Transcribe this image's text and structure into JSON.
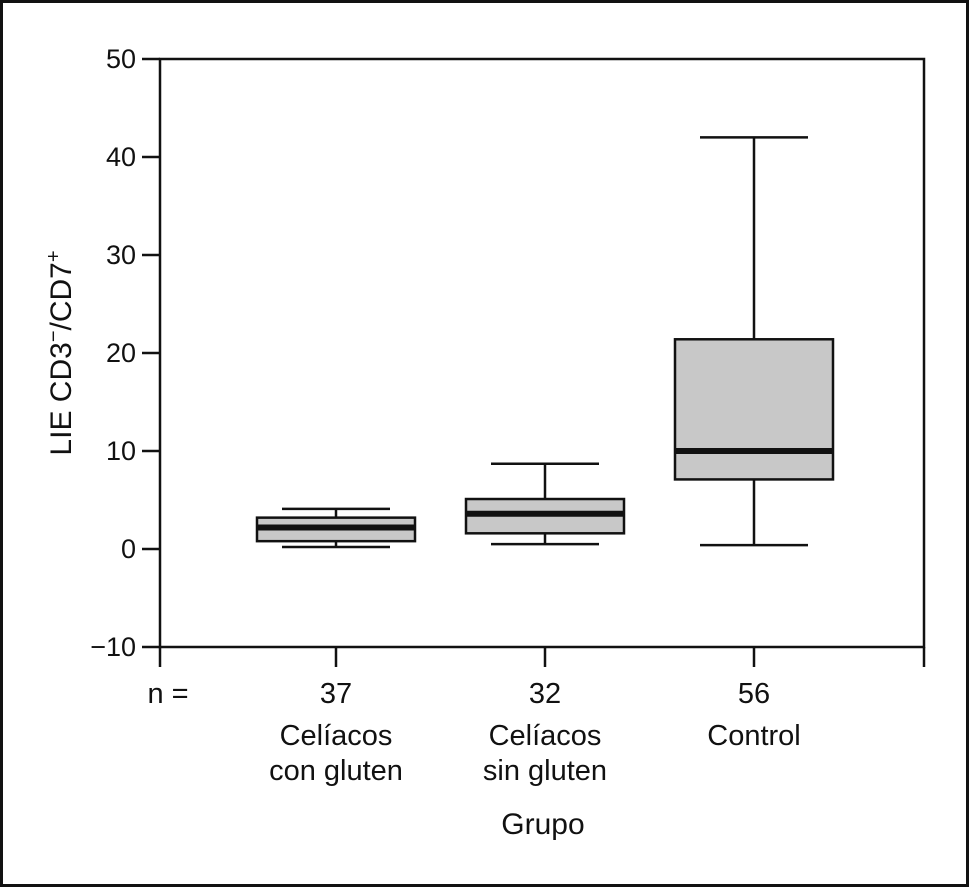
{
  "chart_data": {
    "type": "boxplot",
    "title": "",
    "xlabel": "Grupo",
    "ylabel": "LIE CD3",
    "ylabel_sup1": "−",
    "ylabel_mid": "/CD7",
    "ylabel_sup2": "+",
    "ylim": [
      -10,
      50
    ],
    "yticks": [
      -10,
      0,
      10,
      20,
      30,
      40,
      50
    ],
    "ytick_labels": [
      "−10",
      "0",
      "10",
      "20",
      "30",
      "40",
      "50"
    ],
    "n_prefix": "n =",
    "box_fill": "#c8c8c8",
    "groups": [
      {
        "n": "37",
        "label_line1": "Celíacos",
        "label_line2": "con gluten",
        "min": 0.2,
        "q1": 0.8,
        "median": 2.2,
        "q3": 3.2,
        "max": 4.1
      },
      {
        "n": "32",
        "label_line1": "Celíacos",
        "label_line2": "sin gluten",
        "min": 0.5,
        "q1": 1.6,
        "median": 3.6,
        "q3": 5.1,
        "max": 8.7
      },
      {
        "n": "56",
        "label_line1": "Control",
        "label_line2": "",
        "min": 0.4,
        "q1": 7.1,
        "median": 10.0,
        "q3": 21.4,
        "max": 42.0
      }
    ]
  }
}
